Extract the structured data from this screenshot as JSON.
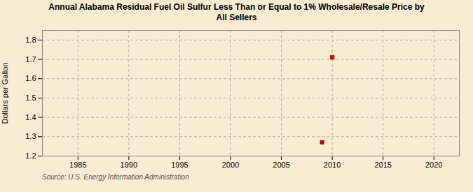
{
  "chart_data": {
    "type": "scatter",
    "title": "Annual Alabama Residual Fuel Oil Sulfur Less Than or Equal to 1% Wholesale/Resale Price by\nAll Sellers",
    "ylabel": "Dollars per Gallon",
    "source": "Source: U.S. Energy Information Administration",
    "x": [
      2009.0,
      2010.0
    ],
    "values": [
      1.271,
      1.71
    ],
    "color": "#cc0000",
    "marker": "square",
    "xlim": [
      1981.5,
      2022.5
    ],
    "ylim": [
      1.2,
      1.85
    ],
    "xticks": [
      1985,
      1990,
      1995,
      2000,
      2005,
      2010,
      2015,
      2020
    ],
    "yticks": [
      1.2,
      1.3,
      1.4,
      1.5,
      1.6,
      1.7,
      1.8
    ],
    "grid": true
  }
}
